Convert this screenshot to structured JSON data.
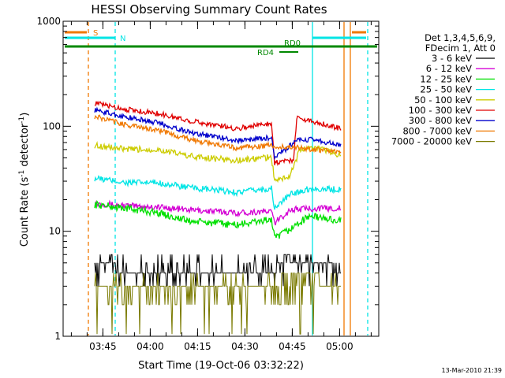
{
  "chart_data": {
    "type": "line",
    "title": "HESSI Observing Summary Count Rates",
    "xlabel": "Start Time (19-Oct-06 03:32:22)",
    "ylabel_main": "Count Rate (s",
    "ylabel_sup1": "-1",
    "ylabel_mid": " detector",
    "ylabel_sup2": "-1",
    "ylabel_end": ")",
    "y_scale": "log",
    "ylim": [
      1,
      1000
    ],
    "xlim_minutes": [
      0,
      100
    ],
    "x_ticks": [
      {
        "label": "03:45",
        "minute": 12.6
      },
      {
        "label": "04:00",
        "minute": 27.6
      },
      {
        "label": "04:15",
        "minute": 42.6
      },
      {
        "label": "04:30",
        "minute": 57.6
      },
      {
        "label": "04:45",
        "minute": 72.6
      },
      {
        "label": "05:00",
        "minute": 87.6
      }
    ],
    "y_ticks": [
      {
        "label": "1",
        "value": 1
      },
      {
        "label": "10",
        "value": 10
      },
      {
        "label": "100",
        "value": 100
      },
      {
        "label": "1000",
        "value": 1000
      }
    ],
    "legend_header": [
      "Det 1,3,4,5,6,9,",
      "FDecim 1, Att 0"
    ],
    "legend_placement": "right",
    "series": [
      {
        "name": "3 - 6 keV",
        "color": "#000000",
        "values": [
          {
            "t": 10,
            "v": 4.6
          },
          {
            "t": 30,
            "v": 4.3
          },
          {
            "t": 40,
            "v": 3.6
          },
          {
            "t": 55,
            "v": 3.6
          },
          {
            "t": 66,
            "v": 3.9
          },
          {
            "t": 70,
            "v": 5.6
          },
          {
            "t": 78,
            "v": 5.2
          },
          {
            "t": 88,
            "v": 4.4
          }
        ]
      },
      {
        "name": "6 - 12 keV",
        "color": "#d400d4",
        "values": [
          {
            "t": 10,
            "v": 18.5
          },
          {
            "t": 20,
            "v": 17.5
          },
          {
            "t": 30,
            "v": 17
          },
          {
            "t": 40,
            "v": 16
          },
          {
            "t": 55,
            "v": 15
          },
          {
            "t": 66,
            "v": 15.5
          },
          {
            "t": 67,
            "v": 12
          },
          {
            "t": 72,
            "v": 16
          },
          {
            "t": 78,
            "v": 16.5
          },
          {
            "t": 88,
            "v": 16.5
          }
        ]
      },
      {
        "name": "12 - 25 keV",
        "color": "#00e000",
        "values": [
          {
            "t": 10,
            "v": 18
          },
          {
            "t": 20,
            "v": 16.5
          },
          {
            "t": 30,
            "v": 15
          },
          {
            "t": 40,
            "v": 12.5
          },
          {
            "t": 55,
            "v": 11.5
          },
          {
            "t": 66,
            "v": 13
          },
          {
            "t": 67,
            "v": 8.5
          },
          {
            "t": 72,
            "v": 10.5
          },
          {
            "t": 78,
            "v": 14
          },
          {
            "t": 88,
            "v": 12.5
          }
        ]
      },
      {
        "name": "25 - 50 keV",
        "color": "#00e5e5",
        "values": [
          {
            "t": 10,
            "v": 32
          },
          {
            "t": 20,
            "v": 29
          },
          {
            "t": 30,
            "v": 29
          },
          {
            "t": 40,
            "v": 26
          },
          {
            "t": 55,
            "v": 23.5
          },
          {
            "t": 66,
            "v": 25.5
          },
          {
            "t": 67,
            "v": 16.5
          },
          {
            "t": 72,
            "v": 22.5
          },
          {
            "t": 78,
            "v": 25.5
          },
          {
            "t": 88,
            "v": 25
          }
        ]
      },
      {
        "name": "50 - 100 keV",
        "color": "#cccc00",
        "values": [
          {
            "t": 10,
            "v": 66
          },
          {
            "t": 20,
            "v": 60
          },
          {
            "t": 30,
            "v": 60
          },
          {
            "t": 40,
            "v": 52
          },
          {
            "t": 55,
            "v": 47
          },
          {
            "t": 66,
            "v": 51
          },
          {
            "t": 67,
            "v": 30
          },
          {
            "t": 72,
            "v": 34
          },
          {
            "t": 75,
            "v": 60
          },
          {
            "t": 80,
            "v": 63
          },
          {
            "t": 88,
            "v": 53
          }
        ]
      },
      {
        "name": "100 - 300 keV",
        "color": "#e00000",
        "values": [
          {
            "t": 10,
            "v": 166
          },
          {
            "t": 20,
            "v": 145
          },
          {
            "t": 30,
            "v": 132
          },
          {
            "t": 40,
            "v": 113
          },
          {
            "t": 55,
            "v": 95
          },
          {
            "t": 66,
            "v": 108
          },
          {
            "t": 67,
            "v": 45
          },
          {
            "t": 73,
            "v": 48
          },
          {
            "t": 74,
            "v": 120
          },
          {
            "t": 80,
            "v": 110
          },
          {
            "t": 88,
            "v": 95
          }
        ]
      },
      {
        "name": "300 - 800 keV",
        "color": "#0000cc",
        "values": [
          {
            "t": 10,
            "v": 143
          },
          {
            "t": 20,
            "v": 122
          },
          {
            "t": 30,
            "v": 108
          },
          {
            "t": 40,
            "v": 88
          },
          {
            "t": 55,
            "v": 73
          },
          {
            "t": 66,
            "v": 78
          },
          {
            "t": 67,
            "v": 50
          },
          {
            "t": 74,
            "v": 73
          },
          {
            "t": 80,
            "v": 75
          },
          {
            "t": 88,
            "v": 65
          }
        ]
      },
      {
        "name": "800 - 7000 keV",
        "color": "#f07800",
        "values": [
          {
            "t": 10,
            "v": 124
          },
          {
            "t": 20,
            "v": 103
          },
          {
            "t": 30,
            "v": 92
          },
          {
            "t": 40,
            "v": 75
          },
          {
            "t": 55,
            "v": 62
          },
          {
            "t": 66,
            "v": 66
          },
          {
            "t": 67,
            "v": 62
          },
          {
            "t": 72,
            "v": 64
          },
          {
            "t": 80,
            "v": 60
          },
          {
            "t": 88,
            "v": 56
          }
        ]
      },
      {
        "name": "7000 - 20000 keV",
        "color": "#7a7a00",
        "values": [
          {
            "t": 10,
            "v": 2.5
          },
          {
            "t": 30,
            "v": 3.0
          },
          {
            "t": 40,
            "v": 2.5
          },
          {
            "t": 55,
            "v": 2.5
          },
          {
            "t": 66,
            "v": 2.7
          },
          {
            "t": 70,
            "v": 3.8
          },
          {
            "t": 78,
            "v": 3.6
          },
          {
            "t": 88,
            "v": 3.3
          }
        ]
      }
    ],
    "flags": [
      {
        "label": "S",
        "color": "#f07800"
      },
      {
        "label": "N",
        "color": "#00e5e5"
      },
      {
        "label": "RD0",
        "color": "#008800"
      },
      {
        "label": "RD4",
        "color": "#008800"
      }
    ],
    "vertical_markers": [
      {
        "minute": 8,
        "color": "#f07800",
        "style": "dashed"
      },
      {
        "minute": 16.5,
        "color": "#00e5e5",
        "style": "dashed"
      },
      {
        "minute": 79,
        "color": "#00e5e5",
        "style": "solid"
      },
      {
        "minute": 89,
        "color": "#f07800",
        "style": "solid"
      },
      {
        "minute": 91,
        "color": "#f07800",
        "style": "solid"
      },
      {
        "minute": 96.5,
        "color": "#00e5e5",
        "style": "dashed"
      }
    ],
    "timestamp": "13-Mar-2010 21:39"
  }
}
